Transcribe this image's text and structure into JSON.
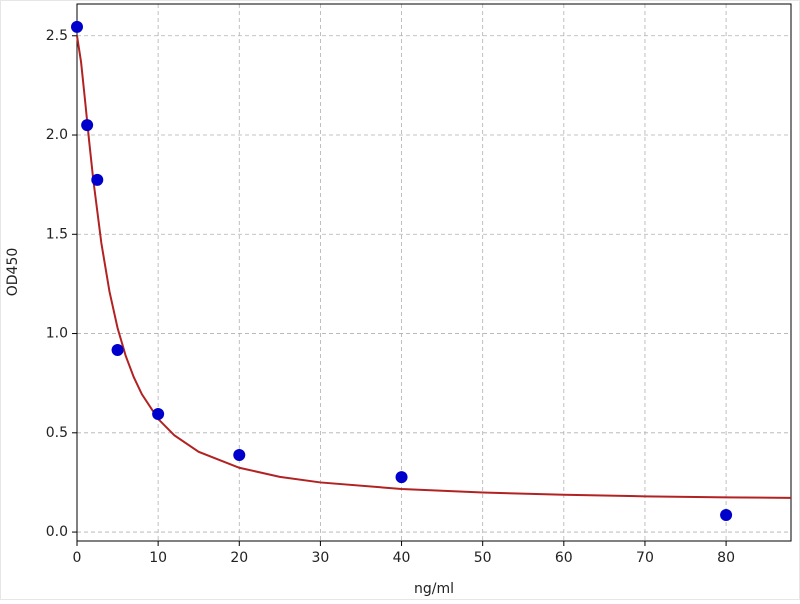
{
  "chart_data": {
    "type": "scatter",
    "xlabel": "ng/ml",
    "ylabel": "OD450",
    "xlim": [
      0,
      88
    ],
    "ylim": [
      -0.045,
      2.66
    ],
    "xticks": [
      0,
      10,
      20,
      30,
      40,
      50,
      60,
      70,
      80
    ],
    "yticks": [
      {
        "value": 0,
        "label": "0.0"
      },
      0.5,
      {
        "value": 1,
        "label": "1.0"
      },
      1.5,
      {
        "value": 2,
        "label": "2.0"
      },
      2.5
    ],
    "grid": true,
    "series": [
      {
        "mark": "line",
        "color": "#b22222",
        "x": [
          0,
          0.5,
          1,
          1.5,
          2,
          3,
          4,
          5,
          6,
          7,
          8,
          10,
          12,
          15,
          20,
          25,
          30,
          40,
          50,
          60,
          70,
          80,
          88
        ],
        "values": [
          2.5,
          2.368,
          2.171,
          1.968,
          1.777,
          1.456,
          1.212,
          1.028,
          0.888,
          0.78,
          0.694,
          0.57,
          0.487,
          0.404,
          0.324,
          0.278,
          0.25,
          0.217,
          0.199,
          0.188,
          0.18,
          0.175,
          0.172
        ]
      },
      {
        "mark": "points",
        "color": "#0000cd",
        "x": [
          0,
          1.25,
          2.5,
          5,
          10,
          20,
          40,
          80
        ],
        "values": [
          2.545,
          2.05,
          1.774,
          0.917,
          0.595,
          0.388,
          0.277,
          0.086
        ]
      }
    ]
  }
}
